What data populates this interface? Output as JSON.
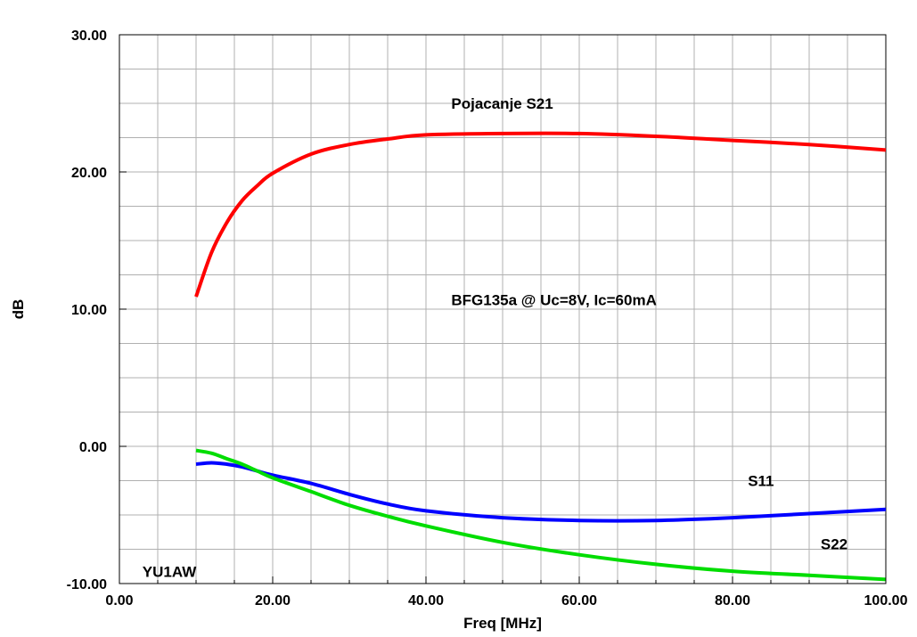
{
  "chart_data": {
    "type": "line",
    "xlabel": "Freq [MHz]",
    "ylabel": "dB",
    "xlim": [
      0,
      100
    ],
    "ylim": [
      -10,
      30
    ],
    "xticks": [
      "0.00",
      "20.00",
      "40.00",
      "60.00",
      "80.00",
      "100.00"
    ],
    "yticks": [
      "-10.00",
      "0.00",
      "10.00",
      "20.00",
      "30.00"
    ],
    "grid": true,
    "annotations": {
      "s21": "Pojacanje S21",
      "device": "BFG135a @ Uc=8V, Ic=60mA",
      "s11": "S11",
      "s22": "S22",
      "author": "YU1AW"
    },
    "series": [
      {
        "name": "S21",
        "color": "#ff0000",
        "x": [
          10,
          12,
          14,
          16,
          18,
          20,
          25,
          30,
          35,
          40,
          50,
          60,
          70,
          80,
          90,
          100
        ],
        "values": [
          10.9,
          14.1,
          16.3,
          17.9,
          19.0,
          19.9,
          21.3,
          22.0,
          22.4,
          22.7,
          22.8,
          22.8,
          22.6,
          22.3,
          22.0,
          21.6
        ]
      },
      {
        "name": "S11",
        "color": "#0000ff",
        "x": [
          10,
          12,
          14,
          16,
          18,
          20,
          25,
          30,
          35,
          40,
          50,
          60,
          70,
          80,
          90,
          100
        ],
        "values": [
          -1.3,
          -1.2,
          -1.3,
          -1.5,
          -1.8,
          -2.1,
          -2.7,
          -3.5,
          -4.2,
          -4.7,
          -5.2,
          -5.4,
          -5.4,
          -5.2,
          -4.9,
          -4.6
        ]
      },
      {
        "name": "S22",
        "color": "#00dd00",
        "x": [
          10,
          12,
          14,
          16,
          18,
          20,
          25,
          30,
          35,
          40,
          50,
          60,
          70,
          80,
          90,
          100
        ],
        "values": [
          -0.3,
          -0.5,
          -0.9,
          -1.3,
          -1.8,
          -2.3,
          -3.3,
          -4.3,
          -5.1,
          -5.8,
          -7.0,
          -7.9,
          -8.6,
          -9.1,
          -9.4,
          -9.7
        ]
      }
    ]
  }
}
